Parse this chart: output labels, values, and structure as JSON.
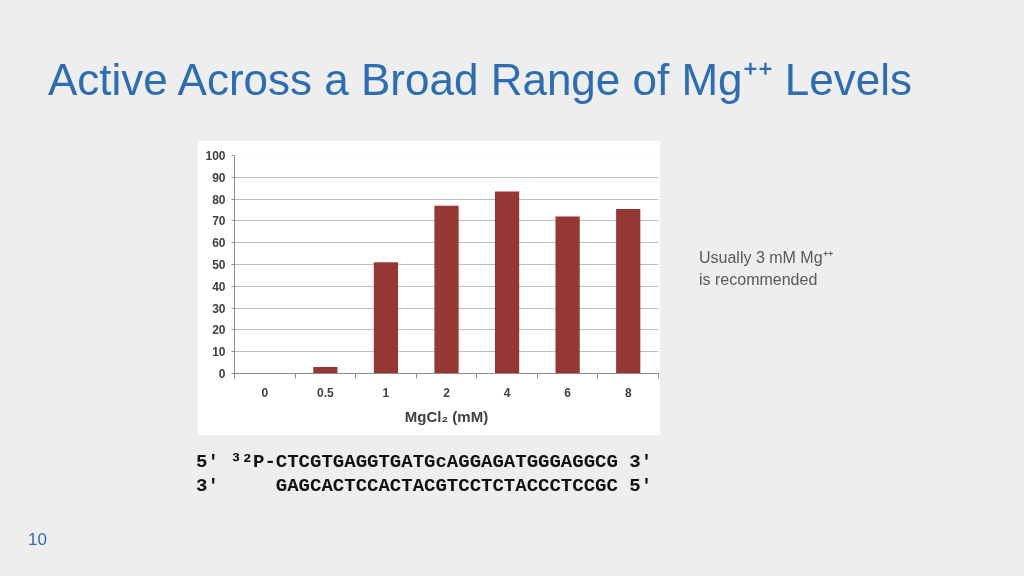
{
  "chart_data": {
    "type": "bar",
    "title": "Active Across a Broad Range of Mg⁺⁺ Levels",
    "xlabel": "MgCl₂ (mM)",
    "categories": [
      "0",
      "0.5",
      "1",
      "2",
      "4",
      "6",
      "8"
    ],
    "values": [
      0,
      3,
      51,
      77,
      83.5,
      72,
      75.5
    ],
    "color": "#953735",
    "ylim": [
      0,
      100
    ],
    "yticks": [
      0,
      10,
      20,
      30,
      40,
      50,
      60,
      70,
      80,
      90,
      100
    ],
    "grid": "y",
    "annotations": [
      "Usually 3 mM Mg⁺⁺ is recommended",
      "5′ ³²P-CTCGTGAGGTGATGcAGGAGATGGGAGGCG 3′",
      "3′     GAGCACTCCACTACGTCCTCTACCCTCCGC 5′",
      "10"
    ]
  }
}
